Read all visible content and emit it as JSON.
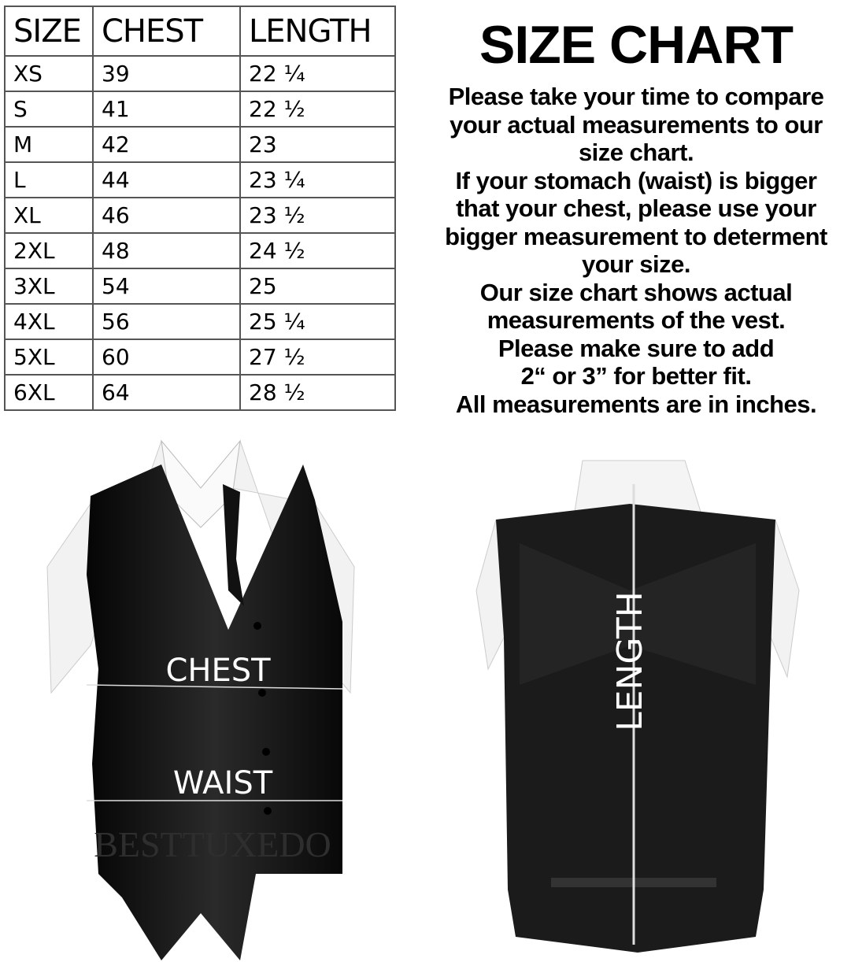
{
  "table": {
    "headers": [
      "SIZE",
      "CHEST",
      "LENGTH"
    ],
    "rows": [
      [
        "XS",
        "39",
        "22 ¼"
      ],
      [
        "S",
        "41",
        "22 ½"
      ],
      [
        "M",
        "42",
        "23"
      ],
      [
        "L",
        "44",
        "23 ¼"
      ],
      [
        "XL",
        "46",
        "23 ½"
      ],
      [
        "2XL",
        "48",
        "24 ½"
      ],
      [
        "3XL",
        "54",
        "25"
      ],
      [
        "4XL",
        "56",
        "25 ¼"
      ],
      [
        "5XL",
        "60",
        "27 ½"
      ],
      [
        "6XL",
        "64",
        "28 ½"
      ]
    ]
  },
  "title": "SIZE CHART",
  "notes": [
    "Please take your time to compare",
    "your actual measurements to our",
    "size chart.",
    "If your stomach (waist) is bigger",
    "that your chest, please use your",
    "bigger measurement to determent",
    "your size.",
    "Our size chart shows actual",
    "measurements of the vest.",
    "Please make sure to add",
    "2“ or 3” for better fit.",
    "All measurements are in inches."
  ],
  "front_vest": {
    "chest_label": "CHEST",
    "waist_label": "WAIST",
    "watermark": "BESTTUXEDO"
  },
  "back_vest": {
    "length_label": "LENGTH"
  }
}
